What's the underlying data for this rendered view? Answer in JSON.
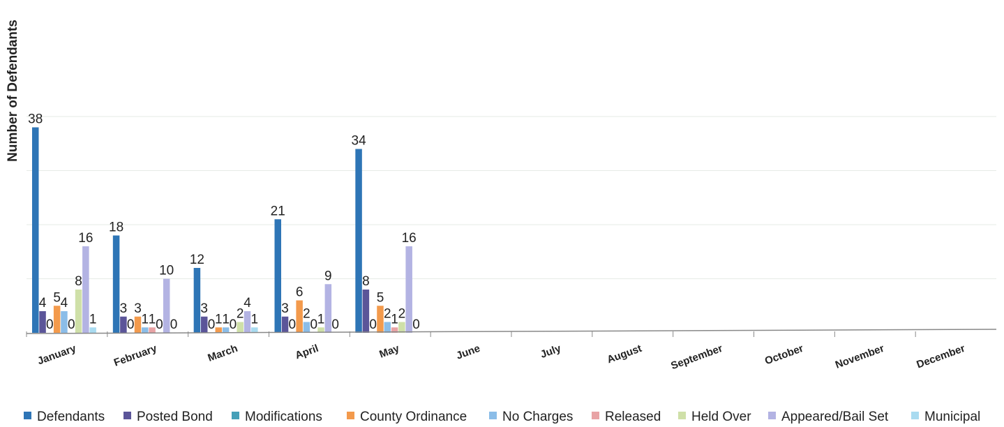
{
  "chart_data": {
    "type": "bar",
    "title": "",
    "xlabel": "",
    "ylabel": "Number of Defendants",
    "ylim": [
      0,
      40
    ],
    "grid": true,
    "legend_position": "bottom",
    "categories": [
      "January",
      "February",
      "March",
      "April",
      "May",
      "June",
      "July",
      "August",
      "September",
      "October",
      "November",
      "December"
    ],
    "series": [
      {
        "name": "Defendants",
        "color": "#2e75b6",
        "values": [
          38,
          18,
          12,
          21,
          34,
          null,
          null,
          null,
          null,
          null,
          null,
          null
        ]
      },
      {
        "name": "Posted Bond",
        "color": "#5b5599",
        "values": [
          4,
          3,
          3,
          3,
          8,
          null,
          null,
          null,
          null,
          null,
          null,
          null
        ]
      },
      {
        "name": "Modifications",
        "color": "#45a0b8",
        "values": [
          0,
          0,
          0,
          0,
          0,
          null,
          null,
          null,
          null,
          null,
          null,
          null
        ]
      },
      {
        "name": "County Ordinance",
        "color": "#f39a4c",
        "values": [
          5,
          3,
          1,
          6,
          5,
          null,
          null,
          null,
          null,
          null,
          null,
          null
        ]
      },
      {
        "name": "No Charges",
        "color": "#8bbde8",
        "values": [
          4,
          1,
          1,
          2,
          2,
          null,
          null,
          null,
          null,
          null,
          null,
          null
        ]
      },
      {
        "name": "Released",
        "color": "#e8a3a5",
        "values": [
          0,
          1,
          0,
          0,
          1,
          null,
          null,
          null,
          null,
          null,
          null,
          null
        ]
      },
      {
        "name": "Held Over",
        "color": "#cfe0a8",
        "values": [
          8,
          0,
          2,
          1,
          2,
          null,
          null,
          null,
          null,
          null,
          null,
          null
        ]
      },
      {
        "name": "Appeared/Bail Set",
        "color": "#b3b3e3",
        "values": [
          16,
          10,
          4,
          9,
          16,
          null,
          null,
          null,
          null,
          null,
          null,
          null
        ]
      },
      {
        "name": "Municipal",
        "color": "#a9dbf0",
        "values": [
          1,
          0,
          1,
          0,
          0,
          null,
          null,
          null,
          null,
          null,
          null,
          null
        ]
      }
    ]
  }
}
